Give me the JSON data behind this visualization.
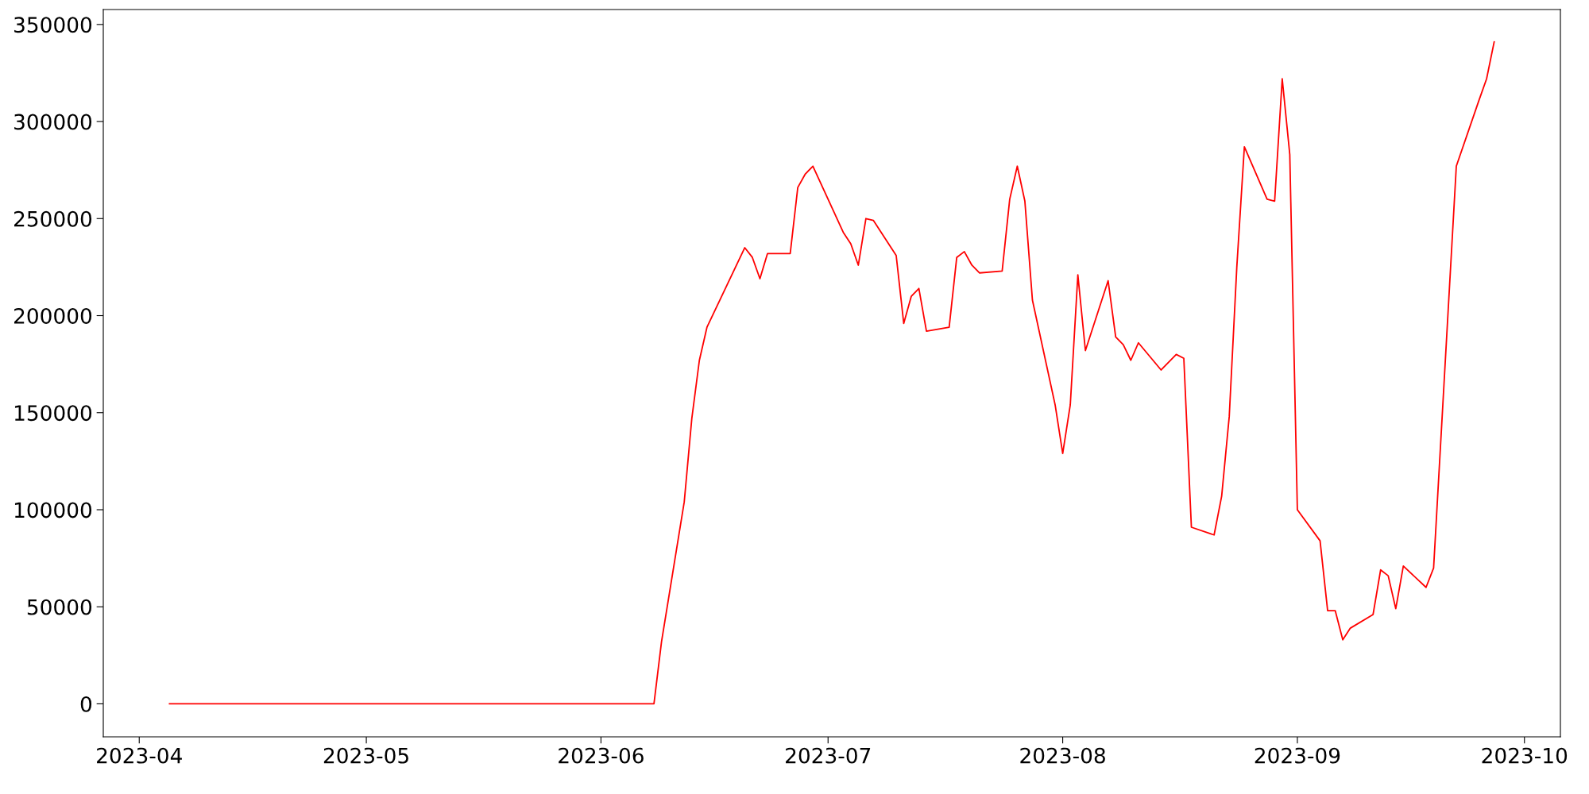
{
  "chart_data": {
    "type": "line",
    "x": [
      "2023-04-05",
      "2023-06-08",
      "2023-06-09",
      "2023-06-12",
      "2023-06-13",
      "2023-06-14",
      "2023-06-15",
      "2023-06-20",
      "2023-06-21",
      "2023-06-22",
      "2023-06-23",
      "2023-06-26",
      "2023-06-27",
      "2023-06-28",
      "2023-06-29",
      "2023-07-03",
      "2023-07-04",
      "2023-07-05",
      "2023-07-06",
      "2023-07-07",
      "2023-07-10",
      "2023-07-11",
      "2023-07-12",
      "2023-07-13",
      "2023-07-14",
      "2023-07-17",
      "2023-07-18",
      "2023-07-19",
      "2023-07-20",
      "2023-07-21",
      "2023-07-24",
      "2023-07-25",
      "2023-07-26",
      "2023-07-27",
      "2023-07-28",
      "2023-07-31",
      "2023-08-01",
      "2023-08-02",
      "2023-08-03",
      "2023-08-04",
      "2023-08-07",
      "2023-08-08",
      "2023-08-09",
      "2023-08-10",
      "2023-08-11",
      "2023-08-14",
      "2023-08-16",
      "2023-08-17",
      "2023-08-18",
      "2023-08-21",
      "2023-08-22",
      "2023-08-23",
      "2023-08-24",
      "2023-08-25",
      "2023-08-28",
      "2023-08-29",
      "2023-08-30",
      "2023-08-31",
      "2023-09-01",
      "2023-09-04",
      "2023-09-05",
      "2023-09-06",
      "2023-09-07",
      "2023-09-08",
      "2023-09-11",
      "2023-09-12",
      "2023-09-13",
      "2023-09-14",
      "2023-09-15",
      "2023-09-18",
      "2023-09-19",
      "2023-09-22",
      "2023-09-25",
      "2023-09-26",
      "2023-09-27"
    ],
    "series": [
      {
        "color": "#ff0000",
        "values": [
          0,
          0,
          32000,
          104000,
          147000,
          177000,
          194000,
          235000,
          230000,
          219000,
          232000,
          232000,
          266000,
          273000,
          277000,
          243000,
          237000,
          226000,
          250000,
          249000,
          231000,
          196000,
          210000,
          214000,
          192000,
          194000,
          230000,
          233000,
          226000,
          222000,
          223000,
          260000,
          277000,
          259000,
          208000,
          154000,
          129000,
          154000,
          221000,
          182000,
          218000,
          189000,
          185000,
          177000,
          186000,
          172000,
          180000,
          178000,
          91000,
          87000,
          107000,
          148000,
          225000,
          287000,
          260000,
          259000,
          322000,
          283000,
          100000,
          84000,
          48000,
          48000,
          33000,
          39000,
          46000,
          69000,
          66000,
          49000,
          71000,
          60000,
          70000,
          277000,
          311000,
          322000,
          341000
        ]
      }
    ],
    "xlim": [
      "2023-03-27T06:00",
      "2023-10-05T18:00"
    ],
    "xticks": [
      {
        "value": "2023-04-01",
        "label": "2023-04"
      },
      {
        "value": "2023-05-01",
        "label": "2023-05"
      },
      {
        "value": "2023-06-01",
        "label": "2023-06"
      },
      {
        "value": "2023-07-01",
        "label": "2023-07"
      },
      {
        "value": "2023-08-01",
        "label": "2023-08"
      },
      {
        "value": "2023-09-01",
        "label": "2023-09"
      },
      {
        "value": "2023-10-01",
        "label": "2023-10"
      }
    ],
    "ylim": [
      -17000,
      357700
    ],
    "yticks": [
      0,
      50000,
      100000,
      150000,
      200000,
      250000,
      300000,
      350000
    ],
    "grid": false,
    "legend": false,
    "marker": "none",
    "line_style": "solid"
  }
}
